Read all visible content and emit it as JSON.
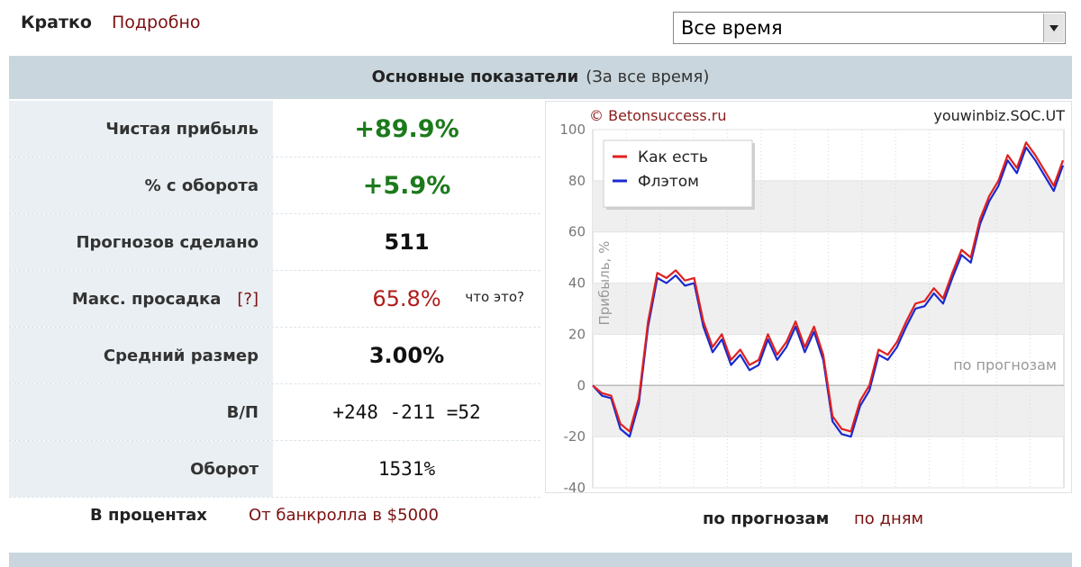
{
  "tabs": {
    "active": "Кратко",
    "other": "Подробно"
  },
  "period_select": "Все время",
  "section": {
    "title": "Основные показатели",
    "subtitle": "(За все время)"
  },
  "table": {
    "rows": [
      {
        "label": "Чистая прибыль",
        "value": "+89.9%"
      },
      {
        "label": "% с оборота",
        "value": "+5.9%"
      },
      {
        "label": "Прогнозов сделано",
        "value": "511"
      },
      {
        "label": "Макс. просадка",
        "help": "[?]",
        "value": "65.8%",
        "note": "что это?"
      },
      {
        "label": "Средний размер",
        "value": "3.00%"
      },
      {
        "label": "В/П",
        "value": "+248 -211 =52"
      },
      {
        "label": "Оборот",
        "value": "1531%"
      }
    ]
  },
  "table_modes": {
    "active": "В процентах",
    "other": "От банкролла в $5000"
  },
  "chart_modes": {
    "active": "по прогнозам",
    "other": "по дням"
  },
  "chart": {
    "type": "line",
    "copyright": "© Betonsuccess.ru",
    "user": "youwinbiz.SOC.UT",
    "y_label": "Прибыль, %",
    "x_annotation": "по прогнозам",
    "xlim": [
      0,
      511
    ],
    "ylim": [
      -40,
      100
    ],
    "yticks": [
      -40,
      -20,
      0,
      20,
      40,
      60,
      80,
      100
    ],
    "grid": true,
    "x": [
      0,
      10,
      20,
      30,
      40,
      50,
      60,
      70,
      80,
      90,
      100,
      110,
      120,
      130,
      140,
      150,
      160,
      170,
      180,
      190,
      200,
      210,
      220,
      230,
      240,
      250,
      260,
      270,
      280,
      290,
      300,
      310,
      320,
      330,
      340,
      350,
      360,
      370,
      380,
      390,
      400,
      410,
      420,
      430,
      440,
      450,
      460,
      470,
      480,
      490,
      500,
      510
    ],
    "series": [
      {
        "name": "Как есть",
        "color": "#e02020",
        "values": [
          0,
          -3,
          -4,
          -15,
          -18,
          -5,
          25,
          44,
          42,
          45,
          41,
          42,
          25,
          15,
          20,
          10,
          14,
          8,
          10,
          20,
          12,
          17,
          25,
          15,
          23,
          12,
          -12,
          -17,
          -18,
          -6,
          0,
          14,
          12,
          17,
          25,
          32,
          33,
          38,
          34,
          44,
          53,
          50,
          65,
          74,
          80,
          90,
          85,
          95,
          90,
          84,
          78,
          88
        ]
      },
      {
        "name": "Флэтом",
        "color": "#1a2ad0",
        "values": [
          0,
          -4,
          -5,
          -17,
          -20,
          -7,
          23,
          42,
          40,
          43,
          39,
          40,
          23,
          13,
          18,
          8,
          12,
          6,
          8,
          18,
          10,
          15,
          23,
          13,
          21,
          10,
          -14,
          -19,
          -20,
          -8,
          -2,
          12,
          10,
          15,
          23,
          30,
          31,
          36,
          32,
          42,
          51,
          48,
          63,
          72,
          78,
          88,
          83,
          93,
          88,
          82,
          76,
          86
        ]
      }
    ],
    "legend": "upper-left"
  }
}
